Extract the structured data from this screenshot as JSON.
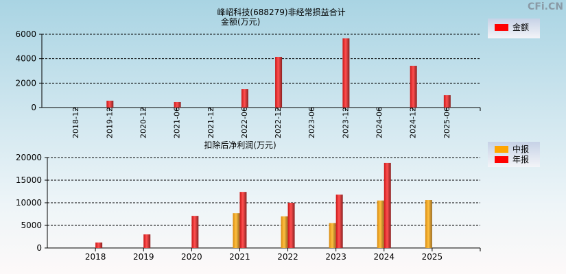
{
  "watermark": "CFi.CN",
  "chart_data": [
    {
      "type": "bar",
      "title": "峰岹科技(688279)非经常损益合计",
      "subtitle": "金额(万元)",
      "categories": [
        "2018-12",
        "2019-12",
        "2020-12",
        "2021-06",
        "2021-12",
        "2022-06",
        "2022-12",
        "2023-06",
        "2023-12",
        "2024-06",
        "2024-12",
        "2025-06"
      ],
      "series": [
        {
          "name": "金额",
          "color": "#ff0000",
          "values": [
            null,
            560,
            null,
            450,
            null,
            1510,
            4150,
            null,
            5660,
            null,
            3420,
            1010
          ]
        }
      ],
      "ylim": [
        0,
        6000
      ],
      "yticks": [
        0,
        2000,
        4000,
        6000
      ],
      "grid": true,
      "legend": "right"
    },
    {
      "type": "bar",
      "title": "扣除后净利润(万元)",
      "categories": [
        "2018",
        "2019",
        "2020",
        "2021",
        "2022",
        "2023",
        "2024",
        "2025"
      ],
      "series": [
        {
          "name": "中报",
          "color": "#ffa500",
          "values": [
            null,
            null,
            null,
            7700,
            7000,
            5500,
            10500,
            10600
          ]
        },
        {
          "name": "年报",
          "color": "#ff0000",
          "values": [
            1200,
            3000,
            7100,
            12400,
            10000,
            11800,
            18800,
            null
          ]
        }
      ],
      "ylim": [
        0,
        20000
      ],
      "yticks": [
        0,
        5000,
        10000,
        15000,
        20000
      ],
      "grid": true,
      "legend": "right"
    }
  ]
}
